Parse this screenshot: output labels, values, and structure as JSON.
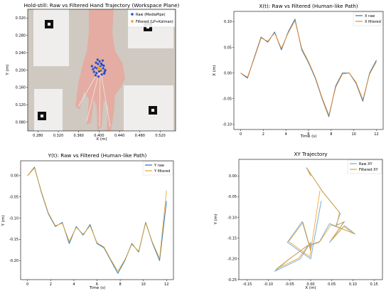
{
  "chart_data": [
    {
      "type": "scatter",
      "title": "Hold-still: Raw vs Filtered Hand Trajectory (Workspace Plane)",
      "xlabel": "X (m)",
      "ylabel": "Y (m)",
      "xticks": [
        "0.280",
        "0.320",
        "0.360",
        "0.400",
        "0.440",
        "0.480",
        "0.520"
      ],
      "yticks": [
        "0.080",
        "0.120",
        "0.160",
        "0.200",
        "0.240",
        "0.280",
        "0.320"
      ],
      "xlim": [
        0.26,
        0.55
      ],
      "ylim": [
        0.06,
        0.34
      ],
      "legend": "top-right",
      "series": [
        {
          "name": "Raw (MediaPipe)",
          "color": "#1f4fd1",
          "x": [
            0.392,
            0.398,
            0.403,
            0.409,
            0.401,
            0.395,
            0.388,
            0.405,
            0.412,
            0.399,
            0.394,
            0.407,
            0.39,
            0.402,
            0.41,
            0.396,
            0.404,
            0.386,
            0.4,
            0.408,
            0.393,
            0.406,
            0.397,
            0.411
          ],
          "y": [
            0.206,
            0.214,
            0.199,
            0.21,
            0.22,
            0.193,
            0.202,
            0.19,
            0.2,
            0.185,
            0.217,
            0.222,
            0.196,
            0.208,
            0.192,
            0.204,
            0.215,
            0.209,
            0.197,
            0.204,
            0.188,
            0.212,
            0.224,
            0.196
          ]
        },
        {
          "name": "Filtered (LP+Kalman)",
          "color": "#f0a020",
          "x": [
            0.399,
            0.4,
            0.401,
            0.402,
            0.401,
            0.4
          ],
          "y": [
            0.203,
            0.204,
            0.202,
            0.203,
            0.205,
            0.204
          ]
        }
      ]
    },
    {
      "type": "line",
      "title": "X(t): Raw vs Filtered (Human-like Path)",
      "xlabel": "Time (s)",
      "ylabel": "X (m)",
      "xlim": [
        -0.6,
        12.6
      ],
      "ylim": [
        -0.11,
        0.12
      ],
      "xticks": [
        0,
        2,
        4,
        6,
        8,
        10,
        12
      ],
      "yticks": [
        -0.1,
        -0.05,
        0.0,
        0.05,
        0.1
      ],
      "legend": "top-right",
      "x": [
        0,
        0.6,
        1.2,
        1.8,
        2.4,
        3.0,
        3.6,
        4.2,
        4.8,
        5.4,
        6.0,
        6.6,
        7.2,
        7.8,
        8.4,
        9.0,
        9.6,
        10.2,
        10.8,
        11.4,
        12.0
      ],
      "series": [
        {
          "name": "X raw",
          "color": "#1f77b4",
          "values": [
            0.0,
            -0.01,
            0.03,
            0.07,
            0.06,
            0.08,
            0.045,
            0.08,
            0.105,
            0.045,
            0.02,
            -0.01,
            -0.05,
            -0.085,
            -0.025,
            0.0,
            0.0,
            -0.02,
            -0.055,
            0.0,
            0.025
          ]
        },
        {
          "name": "X filtered",
          "color": "#ff7f0e",
          "values": [
            0.0,
            -0.008,
            0.028,
            0.068,
            0.062,
            0.078,
            0.048,
            0.078,
            0.102,
            0.048,
            0.022,
            -0.008,
            -0.048,
            -0.082,
            -0.028,
            -0.002,
            0.0,
            -0.018,
            -0.052,
            -0.002,
            0.022
          ]
        }
      ]
    },
    {
      "type": "line",
      "title": "Y(t): Raw vs Filtered (Human-like Path)",
      "xlabel": "Time (s)",
      "ylabel": "Y (m)",
      "xlim": [
        -0.6,
        12.6
      ],
      "ylim": [
        -0.245,
        0.035
      ],
      "xticks": [
        0,
        2,
        4,
        6,
        8,
        10,
        12
      ],
      "yticks": [
        0.0,
        -0.05,
        -0.1,
        -0.15,
        -0.2
      ],
      "legend": "top-right",
      "x": [
        0,
        0.6,
        1.2,
        1.8,
        2.4,
        3.0,
        3.6,
        4.2,
        4.8,
        5.4,
        6.0,
        6.6,
        7.2,
        7.8,
        8.4,
        9.0,
        9.6,
        10.2,
        10.8,
        11.4,
        12.0
      ],
      "series": [
        {
          "name": "Y raw",
          "color": "#1f77b4",
          "values": [
            0.0,
            0.02,
            -0.04,
            -0.09,
            -0.12,
            -0.11,
            -0.16,
            -0.12,
            -0.14,
            -0.115,
            -0.16,
            -0.17,
            -0.2,
            -0.23,
            -0.2,
            -0.16,
            -0.18,
            -0.11,
            -0.16,
            -0.2,
            -0.06
          ]
        },
        {
          "name": "Y filtered",
          "color": "#f0a020",
          "values": [
            0.0,
            0.018,
            -0.038,
            -0.088,
            -0.118,
            -0.112,
            -0.155,
            -0.122,
            -0.138,
            -0.118,
            -0.158,
            -0.168,
            -0.198,
            -0.225,
            -0.198,
            -0.162,
            -0.178,
            -0.112,
            -0.158,
            -0.195,
            -0.035
          ]
        }
      ]
    },
    {
      "type": "line",
      "title": "XY Trajectory",
      "xlabel": "X (m)",
      "ylabel": "Y (m)",
      "xlim": [
        -0.17,
        0.17
      ],
      "ylim": [
        -0.25,
        0.04
      ],
      "xticks": [
        -0.15,
        -0.1,
        -0.05,
        0.0,
        0.05,
        0.1,
        0.15
      ],
      "yticks": [
        0.0,
        -0.05,
        -0.1,
        -0.15,
        -0.2,
        -0.25
      ],
      "legend": "top-right",
      "series": [
        {
          "name": "Raw XY",
          "color": "#6fa8dc",
          "x": [
            0.0,
            -0.01,
            0.03,
            0.07,
            0.06,
            0.08,
            0.045,
            0.08,
            0.105,
            0.045,
            0.02,
            -0.01,
            -0.05,
            -0.085,
            -0.025,
            0.0,
            0.0,
            -0.02,
            -0.055,
            0.0,
            0.025
          ],
          "y": [
            0.0,
            0.02,
            -0.04,
            -0.09,
            -0.12,
            -0.11,
            -0.16,
            -0.12,
            -0.14,
            -0.115,
            -0.16,
            -0.17,
            -0.2,
            -0.23,
            -0.2,
            -0.16,
            -0.18,
            -0.11,
            -0.16,
            -0.2,
            -0.06
          ]
        },
        {
          "name": "Filtered XY",
          "color": "#f0a020",
          "x": [
            0.0,
            -0.008,
            0.028,
            0.068,
            0.062,
            0.078,
            0.048,
            0.078,
            0.102,
            0.048,
            0.022,
            -0.008,
            -0.048,
            -0.082,
            -0.028,
            -0.002,
            0.0,
            -0.018,
            -0.052,
            -0.002,
            0.022
          ],
          "y": [
            0.0,
            0.018,
            -0.038,
            -0.088,
            -0.118,
            -0.112,
            -0.155,
            -0.122,
            -0.138,
            -0.118,
            -0.158,
            -0.168,
            -0.198,
            -0.225,
            -0.198,
            -0.162,
            -0.178,
            -0.112,
            -0.158,
            -0.195,
            -0.035
          ]
        }
      ]
    }
  ]
}
